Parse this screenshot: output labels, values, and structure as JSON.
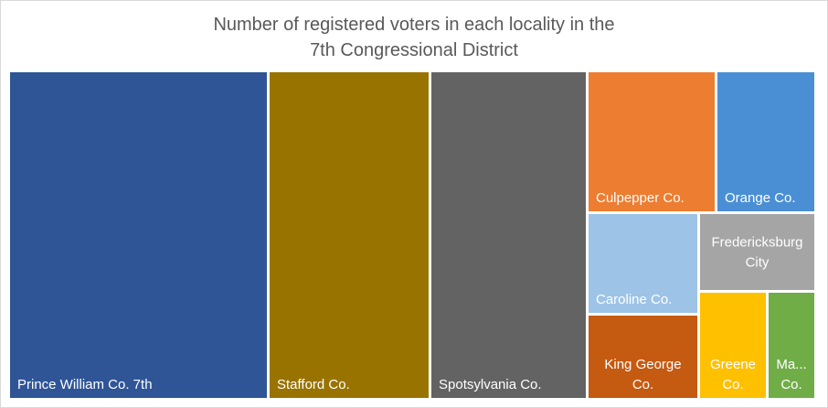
{
  "chart_data": {
    "type": "treemap",
    "title_lines": [
      "Number of registered voters in each locality in the",
      "7th Congressional District"
    ],
    "tiles": [
      {
        "name": "Prince William Co. 7th",
        "label_lines": [
          "Prince William Co. 7th"
        ],
        "color": "#2F5597",
        "value": 163000
      },
      {
        "name": "Stafford Co.",
        "label_lines": [
          "Stafford Co."
        ],
        "color": "#997300",
        "value": 101000
      },
      {
        "name": "Spotsylvania Co.",
        "label_lines": [
          "Spotsylvania Co."
        ],
        "color": "#636363",
        "value": 97000
      },
      {
        "name": "Culpepper Co.",
        "label_lines": [
          "Culpepper Co."
        ],
        "color": "#ED7D31",
        "value": 24300
      },
      {
        "name": "Orange Co.",
        "label_lines": [
          "Orange Co."
        ],
        "color": "#4A8FD4",
        "value": 18900
      },
      {
        "name": "Caroline Co.",
        "label_lines": [
          "Caroline Co."
        ],
        "color": "#9DC3E6",
        "value": 19600
      },
      {
        "name": "Fredericksburg City",
        "label_lines": [
          "Fredericksburg",
          "City"
        ],
        "color": "#A5A5A5",
        "value": 15400
      },
      {
        "name": "King George Co.",
        "label_lines": [
          "King George",
          "Co."
        ],
        "color": "#C55A11",
        "value": 17600
      },
      {
        "name": "Greene Co.",
        "label_lines": [
          "Greene",
          "Co."
        ],
        "color": "#FFC000",
        "value": 10500
      },
      {
        "name": "Ma... Co.",
        "label_lines": [
          "Ma...",
          "Co."
        ],
        "color": "#70AD47",
        "value": 7100
      }
    ]
  }
}
